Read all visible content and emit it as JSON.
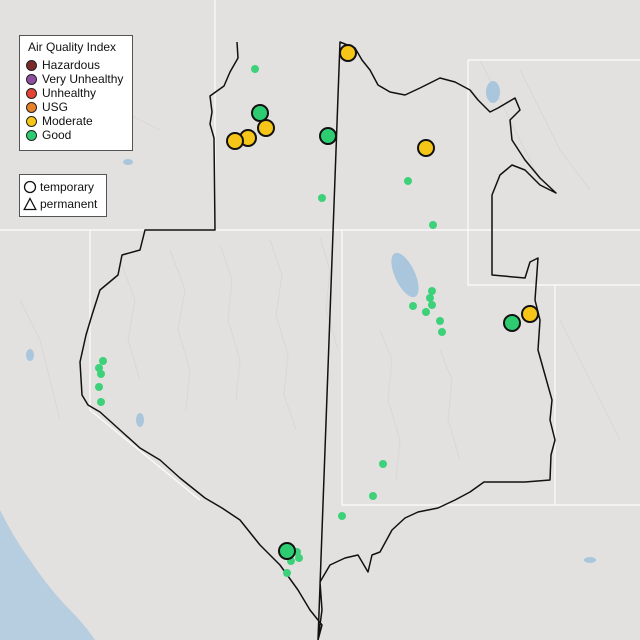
{
  "legend": {
    "title": "Air Quality Index",
    "categories": [
      {
        "label": "Hazardous",
        "color": "#7a2a2a"
      },
      {
        "label": "Very Unhealthy",
        "color": "#8e4fa0"
      },
      {
        "label": "Unhealthy",
        "color": "#e34234"
      },
      {
        "label": "USG",
        "color": "#e6822a"
      },
      {
        "label": "Moderate",
        "color": "#f5c518"
      },
      {
        "label": "Good",
        "color": "#2ecc71"
      }
    ]
  },
  "monitor_types": {
    "temporary_label": "temporary",
    "permanent_label": "permanent"
  },
  "colors": {
    "moderate": "#f5c518",
    "good": "#2ecc71",
    "small_good": "#3dd17a"
  }
}
